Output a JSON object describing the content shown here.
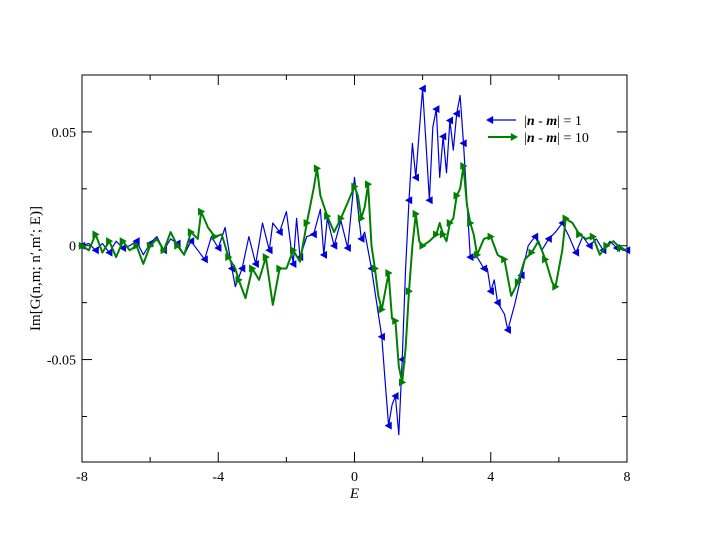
{
  "chart_data": {
    "type": "line",
    "xlabel": "E",
    "ylabel": "Im[G(n,m; n′,m′; E)]",
    "xlim": [
      -8,
      8
    ],
    "ylim": [
      -0.095,
      0.075
    ],
    "xticks": [
      -8,
      -4,
      0,
      4,
      8
    ],
    "xtick_labels": [
      "-8",
      "-4",
      "0",
      "4",
      "8"
    ],
    "yticks": [
      -0.05,
      0,
      0.05
    ],
    "ytick_labels": [
      "-0.05",
      "0",
      "0.05"
    ],
    "grid": false,
    "legend_position": "top-right",
    "series": [
      {
        "name": "| n - m | = 1",
        "legend_parts": [
          "|",
          "n",
          " - ",
          "m",
          "|",
          " = 1"
        ],
        "color": "#0000dd",
        "marker": "left-triangle",
        "points": [
          [
            -8.0,
            0.0
          ],
          [
            -7.8,
            0.001
          ],
          [
            -7.6,
            -0.002
          ],
          [
            -7.4,
            0.001
          ],
          [
            -7.2,
            -0.003
          ],
          [
            -7.0,
            0.002
          ],
          [
            -6.8,
            -0.001
          ],
          [
            -6.6,
            0.0
          ],
          [
            -6.4,
            0.002
          ],
          [
            -6.2,
            -0.004
          ],
          [
            -6.0,
            0.001
          ],
          [
            -5.8,
            0.004
          ],
          [
            -5.6,
            -0.002
          ],
          [
            -5.4,
            0.003
          ],
          [
            -5.2,
            0.001
          ],
          [
            -5.0,
            -0.004
          ],
          [
            -4.8,
            0.002
          ],
          [
            -4.6,
            -0.002
          ],
          [
            -4.4,
            -0.006
          ],
          [
            -4.2,
            0.004
          ],
          [
            -4.0,
            -0.001
          ],
          [
            -3.8,
            0.008
          ],
          [
            -3.6,
            -0.01
          ],
          [
            -3.5,
            -0.018
          ],
          [
            -3.3,
            -0.01
          ],
          [
            -3.1,
            0.004
          ],
          [
            -2.9,
            -0.008
          ],
          [
            -2.7,
            0.01
          ],
          [
            -2.5,
            -0.002
          ],
          [
            -2.4,
            0.01
          ],
          [
            -2.2,
            0.006
          ],
          [
            -2.0,
            0.015
          ],
          [
            -1.8,
            -0.008
          ],
          [
            -1.7,
            0.012
          ],
          [
            -1.6,
            -0.005
          ],
          [
            -1.4,
            0.004
          ],
          [
            -1.2,
            0.005
          ],
          [
            -1.0,
            0.016
          ],
          [
            -0.9,
            -0.004
          ],
          [
            -0.8,
            0.012
          ],
          [
            -0.6,
            0.0
          ],
          [
            -0.4,
            0.011
          ],
          [
            -0.2,
            -0.001
          ],
          [
            0.0,
            0.03
          ],
          [
            0.2,
            0.003
          ],
          [
            0.3,
            0.006
          ],
          [
            0.5,
            -0.01
          ],
          [
            0.6,
            -0.02
          ],
          [
            0.8,
            -0.04
          ],
          [
            0.9,
            -0.06
          ],
          [
            1.0,
            -0.079
          ],
          [
            1.1,
            -0.07
          ],
          [
            1.2,
            -0.066
          ],
          [
            1.3,
            -0.083
          ],
          [
            1.4,
            -0.05
          ],
          [
            1.5,
            -0.01
          ],
          [
            1.6,
            0.02
          ],
          [
            1.7,
            0.045
          ],
          [
            1.8,
            0.03
          ],
          [
            1.9,
            0.05
          ],
          [
            2.0,
            0.069
          ],
          [
            2.1,
            0.045
          ],
          [
            2.2,
            0.02
          ],
          [
            2.3,
            0.052
          ],
          [
            2.4,
            0.06
          ],
          [
            2.5,
            0.03
          ],
          [
            2.6,
            0.048
          ],
          [
            2.7,
            0.032
          ],
          [
            2.8,
            0.055
          ],
          [
            2.9,
            0.042
          ],
          [
            3.0,
            0.058
          ],
          [
            3.1,
            0.066
          ],
          [
            3.2,
            0.045
          ],
          [
            3.3,
            0.02
          ],
          [
            3.4,
            -0.005
          ],
          [
            3.6,
            -0.005
          ],
          [
            3.8,
            -0.01
          ],
          [
            3.9,
            -0.01
          ],
          [
            4.0,
            -0.02
          ],
          [
            4.1,
            -0.015
          ],
          [
            4.2,
            -0.025
          ],
          [
            4.4,
            -0.03
          ],
          [
            4.5,
            -0.037
          ],
          [
            4.7,
            -0.026
          ],
          [
            4.9,
            -0.013
          ],
          [
            5.1,
            0.0
          ],
          [
            5.3,
            0.004
          ],
          [
            5.5,
            -0.002
          ],
          [
            5.7,
            0.003
          ],
          [
            5.9,
            0.006
          ],
          [
            6.1,
            0.01
          ],
          [
            6.3,
            0.004
          ],
          [
            6.5,
            -0.003
          ],
          [
            6.7,
            0.004
          ],
          [
            6.9,
            0.0
          ],
          [
            7.1,
            0.003
          ],
          [
            7.3,
            -0.002
          ],
          [
            7.5,
            0.002
          ],
          [
            7.7,
            -0.001
          ],
          [
            7.9,
            -0.002
          ],
          [
            8.0,
            -0.002
          ]
        ]
      },
      {
        "name": "| n - m | = 10",
        "legend_parts": [
          "|",
          "n",
          " - ",
          "m",
          "|",
          " = 10"
        ],
        "color": "#008000",
        "marker": "right-triangle",
        "points": [
          [
            -8.0,
            0.0
          ],
          [
            -7.8,
            -0.002
          ],
          [
            -7.6,
            0.005
          ],
          [
            -7.4,
            -0.003
          ],
          [
            -7.2,
            0.002
          ],
          [
            -7.0,
            -0.005
          ],
          [
            -6.8,
            0.002
          ],
          [
            -6.6,
            -0.002
          ],
          [
            -6.4,
            0.0
          ],
          [
            -6.2,
            -0.008
          ],
          [
            -6.0,
            0.0
          ],
          [
            -5.8,
            0.003
          ],
          [
            -5.6,
            -0.002
          ],
          [
            -5.4,
            0.006
          ],
          [
            -5.2,
            0.0
          ],
          [
            -5.0,
            -0.004
          ],
          [
            -4.8,
            0.006
          ],
          [
            -4.6,
            0.003
          ],
          [
            -4.5,
            0.015
          ],
          [
            -4.3,
            0.008
          ],
          [
            -4.1,
            0.004
          ],
          [
            -3.9,
            0.005
          ],
          [
            -3.7,
            -0.005
          ],
          [
            -3.5,
            -0.01
          ],
          [
            -3.4,
            -0.015
          ],
          [
            -3.2,
            -0.023
          ],
          [
            -3.0,
            -0.01
          ],
          [
            -2.8,
            -0.015
          ],
          [
            -2.6,
            -0.005
          ],
          [
            -2.4,
            -0.026
          ],
          [
            -2.2,
            -0.01
          ],
          [
            -2.0,
            -0.01
          ],
          [
            -1.8,
            -0.002
          ],
          [
            -1.6,
            -0.007
          ],
          [
            -1.4,
            0.01
          ],
          [
            -1.2,
            0.025
          ],
          [
            -1.1,
            0.034
          ],
          [
            -1.0,
            0.022
          ],
          [
            -0.8,
            0.013
          ],
          [
            -0.6,
            0.006
          ],
          [
            -0.4,
            0.012
          ],
          [
            -0.2,
            0.019
          ],
          [
            0.0,
            0.026
          ],
          [
            0.1,
            0.022
          ],
          [
            0.2,
            0.012
          ],
          [
            0.3,
            0.017
          ],
          [
            0.4,
            0.027
          ],
          [
            0.5,
            0.0
          ],
          [
            0.6,
            -0.01
          ],
          [
            0.7,
            -0.022
          ],
          [
            0.8,
            -0.028
          ],
          [
            0.9,
            -0.02
          ],
          [
            1.0,
            -0.012
          ],
          [
            1.1,
            -0.032
          ],
          [
            1.2,
            -0.033
          ],
          [
            1.3,
            -0.053
          ],
          [
            1.4,
            -0.06
          ],
          [
            1.5,
            -0.045
          ],
          [
            1.6,
            -0.02
          ],
          [
            1.7,
            0.0
          ],
          [
            1.8,
            0.014
          ],
          [
            1.9,
            0.002
          ],
          [
            2.0,
            0.0
          ],
          [
            2.2,
            0.002
          ],
          [
            2.4,
            0.005
          ],
          [
            2.5,
            0.01
          ],
          [
            2.6,
            0.005
          ],
          [
            2.7,
            0.002
          ],
          [
            2.8,
            0.01
          ],
          [
            2.9,
            0.012
          ],
          [
            3.0,
            0.022
          ],
          [
            3.1,
            0.025
          ],
          [
            3.2,
            0.035
          ],
          [
            3.3,
            0.018
          ],
          [
            3.4,
            0.01
          ],
          [
            3.5,
            0.005
          ],
          [
            3.6,
            -0.004
          ],
          [
            3.8,
            0.003
          ],
          [
            4.0,
            0.004
          ],
          [
            4.2,
            -0.004
          ],
          [
            4.4,
            -0.006
          ],
          [
            4.6,
            -0.022
          ],
          [
            4.8,
            -0.016
          ],
          [
            5.0,
            -0.006
          ],
          [
            5.2,
            -0.003
          ],
          [
            5.4,
            0.002
          ],
          [
            5.6,
            -0.006
          ],
          [
            5.8,
            -0.016
          ],
          [
            5.9,
            -0.018
          ],
          [
            6.1,
            -0.002
          ],
          [
            6.2,
            0.012
          ],
          [
            6.4,
            0.01
          ],
          [
            6.6,
            0.005
          ],
          [
            6.8,
            0.003
          ],
          [
            7.0,
            0.004
          ],
          [
            7.2,
            -0.004
          ],
          [
            7.4,
            0.0
          ],
          [
            7.6,
            0.002
          ],
          [
            7.8,
            -0.001
          ],
          [
            8.0,
            -0.002
          ]
        ]
      }
    ]
  }
}
